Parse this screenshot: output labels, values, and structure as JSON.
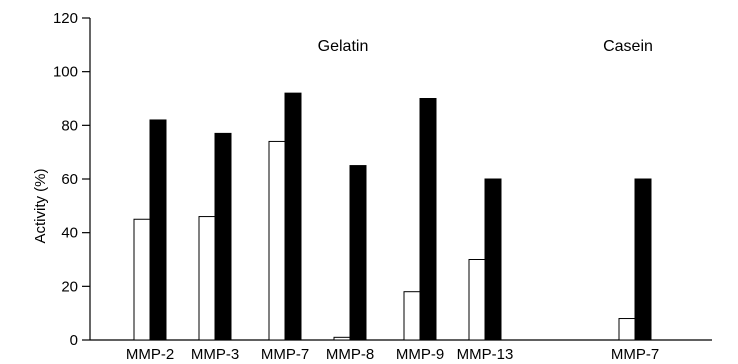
{
  "chart_data": {
    "type": "bar",
    "ylabel": "Activity (%)",
    "xlabel": "",
    "ylim": [
      0,
      120
    ],
    "yticks": [
      0,
      20,
      40,
      60,
      80,
      100,
      120
    ],
    "grid": false,
    "categories": [
      "MMP-2",
      "MMP-3",
      "MMP-7",
      "MMP-8",
      "MMP-9",
      "MMP-13",
      "MMP-7"
    ],
    "series": [
      {
        "values": [
          45,
          46,
          74,
          1,
          18,
          30,
          8
        ],
        "color": "#ffffff"
      },
      {
        "values": [
          82,
          77,
          92,
          65,
          90,
          60,
          60
        ],
        "color": "#000000"
      }
    ],
    "annotations": [
      {
        "text": "Gelatin",
        "at_category": 3
      },
      {
        "text": "Casein",
        "at_category": 6
      }
    ]
  }
}
